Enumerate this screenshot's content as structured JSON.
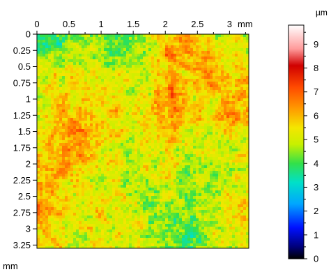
{
  "chart_data": {
    "type": "heatmap",
    "title": "",
    "x_unit_label": "mm",
    "y_unit_label": "mm",
    "xlim": [
      0,
      3.3
    ],
    "ylim": [
      0,
      3.3
    ],
    "x_ticks": [
      {
        "value": 0,
        "label": "0"
      },
      {
        "value": 0.5,
        "label": "0.5"
      },
      {
        "value": 1,
        "label": "1"
      },
      {
        "value": 1.5,
        "label": "1.5"
      },
      {
        "value": 2,
        "label": "2"
      },
      {
        "value": 2.5,
        "label": "2.5"
      },
      {
        "value": 3,
        "label": "3"
      }
    ],
    "y_ticks": [
      {
        "value": 0,
        "label": "0"
      },
      {
        "value": 0.25,
        "label": "0.25"
      },
      {
        "value": 0.5,
        "label": "0.5"
      },
      {
        "value": 0.75,
        "label": "0.75"
      },
      {
        "value": 1,
        "label": "1"
      },
      {
        "value": 1.25,
        "label": "1.25"
      },
      {
        "value": 1.5,
        "label": "1.5"
      },
      {
        "value": 1.75,
        "label": "1.75"
      },
      {
        "value": 2,
        "label": "2"
      },
      {
        "value": 2.25,
        "label": "2.25"
      },
      {
        "value": 2.5,
        "label": "2.5"
      },
      {
        "value": 2.75,
        "label": "2.75"
      },
      {
        "value": 3,
        "label": "3"
      },
      {
        "value": 3.25,
        "label": "3.25"
      }
    ],
    "y_axis_direction": "down",
    "colorbar": {
      "unit_label": "µm",
      "min": 0,
      "max": 9.8,
      "ticks": [
        {
          "value": 0,
          "label": "0"
        },
        {
          "value": 1,
          "label": "1"
        },
        {
          "value": 2,
          "label": "2"
        },
        {
          "value": 3,
          "label": "3"
        },
        {
          "value": 4,
          "label": "4"
        },
        {
          "value": 5,
          "label": "5"
        },
        {
          "value": 6,
          "label": "6"
        },
        {
          "value": 7,
          "label": "7"
        },
        {
          "value": 8,
          "label": "8"
        },
        {
          "value": 9,
          "label": "9"
        }
      ],
      "colormap": [
        {
          "value": 0,
          "color": "#000000"
        },
        {
          "value": 0.5,
          "color": "#00007a"
        },
        {
          "value": 1.3,
          "color": "#0010ff"
        },
        {
          "value": 2.3,
          "color": "#00a6ff"
        },
        {
          "value": 3.2,
          "color": "#00e0c8"
        },
        {
          "value": 4.0,
          "color": "#33e04a"
        },
        {
          "value": 4.8,
          "color": "#c8f000"
        },
        {
          "value": 5.5,
          "color": "#f4e600"
        },
        {
          "value": 6.3,
          "color": "#ff9a00"
        },
        {
          "value": 7.2,
          "color": "#ff4a00"
        },
        {
          "value": 8.1,
          "color": "#d00000"
        },
        {
          "value": 8.8,
          "color": "#ff9a9a"
        },
        {
          "value": 9.8,
          "color": "#ffffff"
        }
      ]
    },
    "height_map": {
      "description_values_in_um": true,
      "typical_mean": 5.4,
      "typical_min": 2.5,
      "typical_max": 7.5,
      "rows": 12,
      "cols": 12,
      "values": [
        [
          3.6,
          3.8,
          4.0,
          4.3,
          4.0,
          4.3,
          5.0,
          5.8,
          6.2,
          5.4,
          5.0,
          4.6
        ],
        [
          4.2,
          4.6,
          4.8,
          5.0,
          4.4,
          4.6,
          5.2,
          6.4,
          6.0,
          6.2,
          5.2,
          5.0
        ],
        [
          4.8,
          5.2,
          5.6,
          5.3,
          5.4,
          5.0,
          5.4,
          6.0,
          5.6,
          6.4,
          5.6,
          6.0
        ],
        [
          5.0,
          5.8,
          5.4,
          5.6,
          5.2,
          5.0,
          5.6,
          6.6,
          5.8,
          5.4,
          5.6,
          5.8
        ],
        [
          5.4,
          6.2,
          5.8,
          5.4,
          5.6,
          5.2,
          5.6,
          6.2,
          5.6,
          5.4,
          6.4,
          6.2
        ],
        [
          5.2,
          5.8,
          6.4,
          5.8,
          5.4,
          5.0,
          5.4,
          5.8,
          5.2,
          5.0,
          5.4,
          5.2
        ],
        [
          5.6,
          6.2,
          6.4,
          5.6,
          5.2,
          4.8,
          5.2,
          5.4,
          5.0,
          4.8,
          5.0,
          5.4
        ],
        [
          6.0,
          6.2,
          5.8,
          5.4,
          5.2,
          5.0,
          5.0,
          5.2,
          4.8,
          4.6,
          4.8,
          5.0
        ],
        [
          6.4,
          5.8,
          5.4,
          5.0,
          5.2,
          4.8,
          4.6,
          5.0,
          4.4,
          4.8,
          5.2,
          5.4
        ],
        [
          6.2,
          6.0,
          5.2,
          5.4,
          5.0,
          5.2,
          4.4,
          4.8,
          4.2,
          5.0,
          5.4,
          5.6
        ],
        [
          6.0,
          5.4,
          5.0,
          5.6,
          5.4,
          5.0,
          4.6,
          4.4,
          4.2,
          4.8,
          5.2,
          5.4
        ],
        [
          5.6,
          5.2,
          5.0,
          5.2,
          5.0,
          4.8,
          4.6,
          4.2,
          4.0,
          4.6,
          5.0,
          5.2
        ]
      ]
    }
  }
}
